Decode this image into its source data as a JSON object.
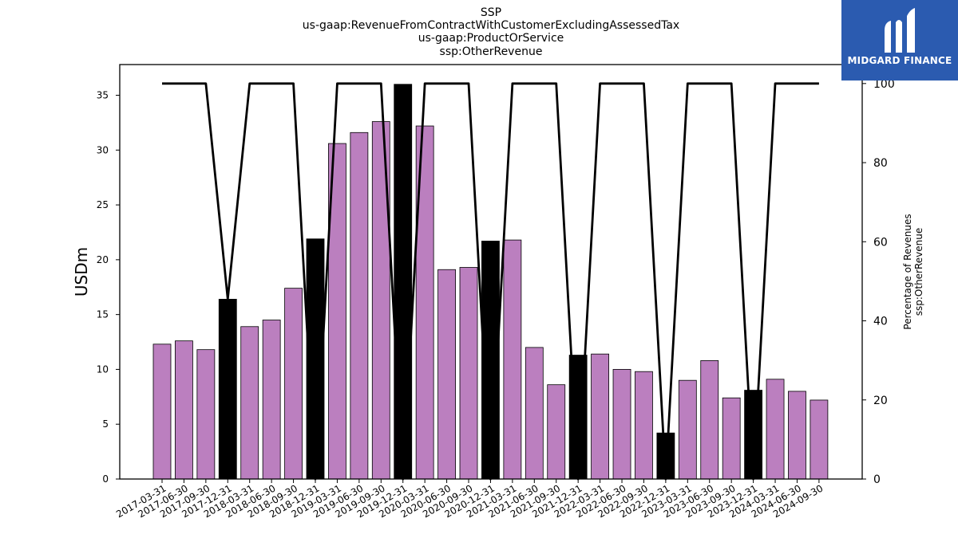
{
  "chart_data": {
    "type": "bar",
    "title_lines": [
      "SSP",
      "us-gaap:RevenueFromContractWithCustomerExcludingAssessedTax",
      "us-gaap:ProductOrService",
      "ssp:OtherRevenue"
    ],
    "ylabel": "USDm",
    "ylabel_right": [
      "Percentage of Revenues",
      "ssp:OtherRevenue"
    ],
    "ylim": [
      0,
      37.8
    ],
    "yticks": [
      0,
      5,
      10,
      15,
      20,
      25,
      30,
      35
    ],
    "ylim_right": [
      0,
      104.8
    ],
    "yticks_right": [
      0,
      20,
      40,
      60,
      80,
      100
    ],
    "categories": [
      "2017-03-31",
      "2017-06-30",
      "2017-09-30",
      "2017-12-31",
      "2018-03-31",
      "2018-06-30",
      "2018-09-30",
      "2018-12-31",
      "2019-03-31",
      "2019-06-30",
      "2019-09-30",
      "2019-12-31",
      "2020-03-31",
      "2020-06-30",
      "2020-09-30",
      "2020-12-31",
      "2021-03-31",
      "2021-06-30",
      "2021-09-30",
      "2021-12-31",
      "2022-03-31",
      "2022-06-30",
      "2022-09-30",
      "2022-12-31",
      "2023-03-31",
      "2023-06-30",
      "2023-09-30",
      "2023-12-31",
      "2024-03-31",
      "2024-06-30",
      "2024-09-30"
    ],
    "series": [
      {
        "type": "bar",
        "values": [
          12.3,
          12.6,
          11.8,
          16.4,
          13.9,
          14.5,
          17.4,
          21.9,
          30.6,
          31.6,
          32.6,
          36.0,
          32.2,
          19.1,
          19.3,
          21.7,
          21.8,
          12.0,
          8.6,
          11.3,
          11.4,
          10.0,
          9.8,
          4.2,
          9.0,
          10.8,
          7.4,
          8.1,
          9.1,
          8.0,
          7.2
        ],
        "highlight": [
          false,
          false,
          false,
          true,
          false,
          false,
          false,
          true,
          false,
          false,
          false,
          true,
          false,
          false,
          false,
          true,
          false,
          false,
          false,
          true,
          false,
          false,
          false,
          true,
          false,
          false,
          false,
          true,
          false,
          false,
          false
        ],
        "color": "#bb7fbf",
        "highlight_color": "#000000"
      },
      {
        "type": "line",
        "axis": "right",
        "values": [
          100,
          100,
          100,
          45.5,
          100,
          100,
          100,
          0,
          100,
          100,
          100,
          0,
          100,
          100,
          100,
          0,
          100,
          100,
          100,
          0,
          100,
          100,
          100,
          0,
          100,
          100,
          100,
          0,
          100,
          100,
          100
        ],
        "color": "#000000"
      }
    ],
    "logo_text": "MIDGARD FINANCE"
  }
}
